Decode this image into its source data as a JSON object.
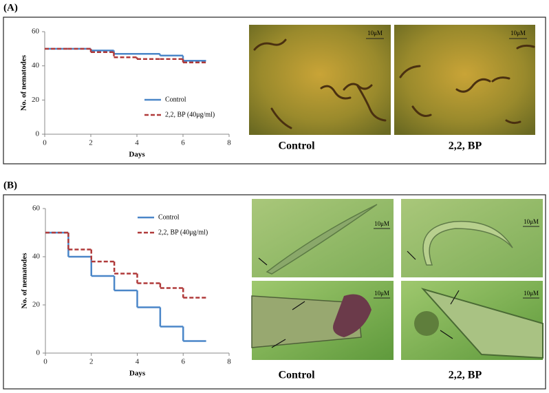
{
  "chart_data": [
    {
      "type": "line",
      "step": "post",
      "x_label": "Days",
      "y_label": "No. of nematodes",
      "x": [
        0,
        1,
        2,
        3,
        4,
        5,
        6,
        7
      ],
      "series": [
        {
          "name": "Control",
          "color": "#4a86c8",
          "dashed": false,
          "values": [
            50,
            50,
            49,
            47,
            47,
            46,
            43,
            43
          ]
        },
        {
          "name": "2,2, BP (40μg/ml)",
          "color": "#b03a3a",
          "dashed": true,
          "values": [
            50,
            50,
            48,
            45,
            44,
            44,
            42,
            42
          ]
        }
      ],
      "xlim": [
        0,
        8
      ],
      "xticks": [
        0,
        2,
        4,
        6,
        8
      ],
      "ylim": [
        0,
        60
      ],
      "yticks": [
        0,
        20,
        40,
        60
      ],
      "legend": "lower right"
    },
    {
      "type": "line",
      "step": "post",
      "x_label": "Days",
      "y_label": "No. of nematodes",
      "x": [
        0,
        1,
        2,
        3,
        4,
        5,
        6,
        7
      ],
      "series": [
        {
          "name": "Control",
          "color": "#4a86c8",
          "dashed": false,
          "values": [
            50,
            40,
            32,
            26,
            19,
            11,
            5,
            5
          ]
        },
        {
          "name": "2,2, BP (40μg/ml)",
          "color": "#b03a3a",
          "dashed": true,
          "values": [
            50,
            43,
            38,
            33,
            29,
            27,
            23,
            23
          ]
        }
      ],
      "xlim": [
        0,
        8
      ],
      "xticks": [
        0,
        2,
        4,
        6,
        8
      ],
      "ylim": [
        0,
        60
      ],
      "yticks": [
        0,
        20,
        40,
        60
      ],
      "legend": "upper right"
    }
  ],
  "panels": [
    {
      "label": "(A)",
      "captions": [
        "Control",
        "2,2, BP"
      ],
      "scale_bars": [
        "10μM",
        "10μM"
      ]
    },
    {
      "label": "(B)",
      "captions": [
        "Control",
        "2,2, BP"
      ],
      "scale_bars": [
        "10μM",
        "10μM",
        "10μM",
        "10μM"
      ]
    }
  ]
}
